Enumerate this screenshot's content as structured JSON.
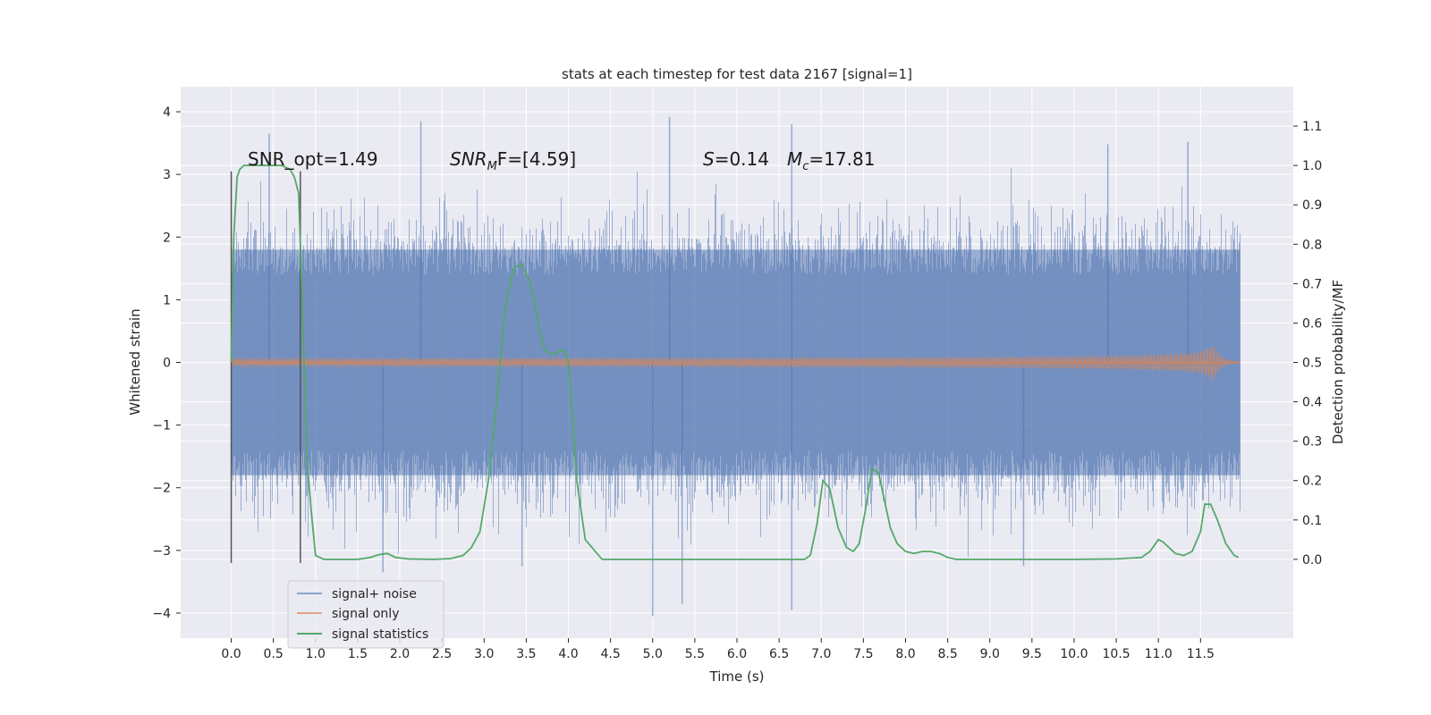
{
  "chart_data": {
    "type": "line",
    "title": "stats at each timestep for test data 2167 [signal=1]",
    "xlabel": "Time (s)",
    "ylabel_left": "Whitened strain",
    "ylabel_right": "Detection probability/MF",
    "xlim": [
      -0.6,
      12.6
    ],
    "ylim_left": [
      -4.4,
      4.4
    ],
    "ylim_right": [
      -0.2,
      1.2
    ],
    "x_ticks": [
      0.0,
      0.5,
      1.0,
      1.5,
      2.0,
      2.5,
      3.0,
      3.5,
      4.0,
      4.5,
      5.0,
      5.5,
      6.0,
      6.5,
      7.0,
      7.5,
      8.0,
      8.5,
      9.0,
      9.5,
      10.0,
      10.5,
      11.0,
      11.5
    ],
    "x_tick_labels": [
      "0.0",
      "0.5",
      "1.0",
      "1.5",
      "2.0",
      "2.5",
      "3.0",
      "3.5",
      "4.0",
      "4.5",
      "5.0",
      "5.5",
      "6.0",
      "6.5",
      "7.0",
      "7.5",
      "8.0",
      "8.5",
      "9.0",
      "9.5",
      "10.0",
      "10.5",
      "11.0",
      "11.5"
    ],
    "y_left_ticks": [
      -4,
      -3,
      -2,
      -1,
      0,
      1,
      2,
      3,
      4
    ],
    "y_left_tick_labels": [
      "−4",
      "−3",
      "−2",
      "−1",
      "0",
      "1",
      "2",
      "3",
      "4"
    ],
    "y_right_ticks": [
      0.0,
      0.1,
      0.2,
      0.3,
      0.4,
      0.5,
      0.6,
      0.7,
      0.8,
      0.9,
      1.0,
      1.1
    ],
    "y_right_tick_labels": [
      "0.0",
      "0.1",
      "0.2",
      "0.3",
      "0.4",
      "0.5",
      "0.6",
      "0.7",
      "0.8",
      "0.9",
      "1.0",
      "1.1"
    ],
    "grid": true,
    "legend_position": "lower-left",
    "vertical_lines": [
      0.0,
      0.82
    ],
    "vertical_line_range_left": [
      -3.2,
      3.05
    ],
    "annotations": {
      "snr_opt": "SNR_opt=1.49",
      "snr_mf_main": "SNR",
      "snr_mf_sub": "M",
      "snr_mf_rest": "F=[4.59]",
      "s_main": "S",
      "s_rest": "=0.14",
      "mc_main": "M",
      "mc_sub": "c",
      "mc_rest": "=17.81"
    },
    "series": [
      {
        "name": "signal+ noise",
        "color": "#4c72b0",
        "axis": "left",
        "style": "noise-band",
        "x_range": [
          0.0,
          11.97
        ],
        "typical_band": [
          -1.8,
          1.8
        ],
        "extreme_range": [
          -4.05,
          3.92
        ],
        "peaks": [
          {
            "x": 0.45,
            "y": 3.65
          },
          {
            "x": 2.25,
            "y": 3.85
          },
          {
            "x": 5.2,
            "y": 3.92
          },
          {
            "x": 6.65,
            "y": 3.8
          },
          {
            "x": 10.4,
            "y": 3.48
          },
          {
            "x": 11.35,
            "y": 3.52
          },
          {
            "x": 1.8,
            "y": -3.35
          },
          {
            "x": 5.0,
            "y": -4.05
          },
          {
            "x": 5.35,
            "y": -3.85
          },
          {
            "x": 6.65,
            "y": -3.95
          },
          {
            "x": 9.4,
            "y": -3.25
          },
          {
            "x": 3.45,
            "y": -3.25
          }
        ]
      },
      {
        "name": "signal only",
        "color": "#dd8452",
        "axis": "left",
        "style": "chirp",
        "x_range": [
          0.0,
          11.97
        ],
        "peak_time": 11.65,
        "peak_amplitude": 0.3
      },
      {
        "name": "signal statistics",
        "color": "#55a868",
        "axis": "right",
        "style": "line",
        "x": [
          0.0,
          0.03,
          0.07,
          0.1,
          0.15,
          0.2,
          0.3,
          0.45,
          0.6,
          0.7,
          0.75,
          0.8,
          0.85,
          0.9,
          0.95,
          1.0,
          1.1,
          1.2,
          1.5,
          1.65,
          1.75,
          1.85,
          1.95,
          2.1,
          2.4,
          2.6,
          2.75,
          2.85,
          2.95,
          3.05,
          3.15,
          3.25,
          3.35,
          3.45,
          3.55,
          3.6,
          3.65,
          3.72,
          3.82,
          3.9,
          3.95,
          4.0,
          4.05,
          4.1,
          4.2,
          4.4,
          5.0,
          6.0,
          6.6,
          6.7,
          6.8,
          6.87,
          6.95,
          7.02,
          7.1,
          7.2,
          7.3,
          7.38,
          7.45,
          7.52,
          7.6,
          7.68,
          7.75,
          7.82,
          7.9,
          8.0,
          8.1,
          8.2,
          8.3,
          8.4,
          8.5,
          8.6,
          8.8,
          9.5,
          10.0,
          10.5,
          10.8,
          10.9,
          11.0,
          11.05,
          11.1,
          11.2,
          11.3,
          11.4,
          11.5,
          11.55,
          11.62,
          11.7,
          11.8,
          11.9,
          11.95
        ],
        "values": [
          0.5,
          0.82,
          0.97,
          0.99,
          1.0,
          1.0,
          1.0,
          1.0,
          1.0,
          0.99,
          0.97,
          0.93,
          0.6,
          0.25,
          0.12,
          0.01,
          0.0,
          0.0,
          0.0,
          0.005,
          0.012,
          0.015,
          0.005,
          0.001,
          0.0,
          0.002,
          0.01,
          0.03,
          0.07,
          0.2,
          0.4,
          0.64,
          0.74,
          0.75,
          0.7,
          0.65,
          0.59,
          0.53,
          0.52,
          0.53,
          0.53,
          0.5,
          0.36,
          0.2,
          0.05,
          0.0,
          0.0,
          0.0,
          0.0,
          0.0,
          0.0,
          0.01,
          0.09,
          0.2,
          0.18,
          0.08,
          0.03,
          0.02,
          0.04,
          0.12,
          0.23,
          0.22,
          0.15,
          0.08,
          0.04,
          0.02,
          0.015,
          0.02,
          0.02,
          0.015,
          0.005,
          0.0,
          0.0,
          0.0,
          0.0,
          0.001,
          0.005,
          0.02,
          0.05,
          0.045,
          0.035,
          0.015,
          0.01,
          0.02,
          0.07,
          0.14,
          0.14,
          0.1,
          0.04,
          0.01,
          0.005
        ]
      }
    ]
  }
}
